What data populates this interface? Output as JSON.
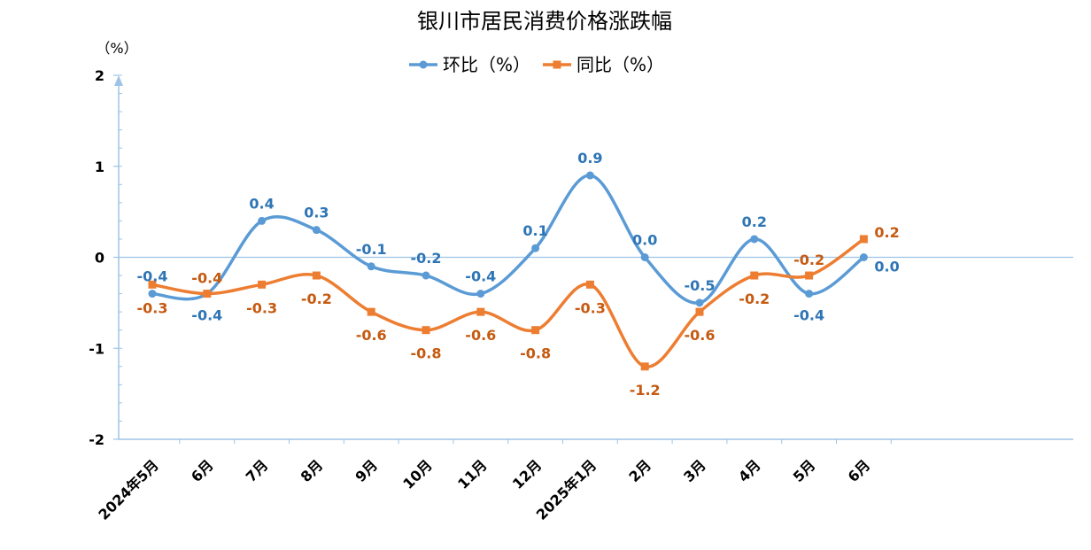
{
  "chart_data": {
    "type": "line",
    "title": "银川市居民消费价格涨跌幅",
    "ylabel": "（%）",
    "xlabel": "",
    "ylim": [
      -2,
      2
    ],
    "yticks": [
      2,
      1,
      0,
      -1,
      -2
    ],
    "categories": [
      "2024年5月",
      "6月",
      "7月",
      "8月",
      "9月",
      "10月",
      "11月",
      "12月",
      "2025年1月",
      "2月",
      "3月",
      "4月",
      "5月",
      "6月"
    ],
    "series": [
      {
        "name": "环比（%）",
        "color": "#5b9bd5",
        "label_color": "#2e75b6",
        "marker": "circle",
        "values": [
          -0.4,
          -0.4,
          0.4,
          0.3,
          -0.1,
          -0.2,
          -0.4,
          0.1,
          0.9,
          0.0,
          -0.5,
          0.2,
          -0.4,
          0.0
        ],
        "labels": [
          "-0.4",
          "-0.4",
          "0.4",
          "0.3",
          "-0.1",
          "-0.2",
          "-0.4",
          "0.1",
          "0.9",
          "0.0",
          "-0.5",
          "0.2",
          "-0.4",
          "0.0"
        ]
      },
      {
        "name": "同比（%）",
        "color": "#ed7d31",
        "label_color": "#c55a11",
        "marker": "square",
        "values": [
          -0.3,
          -0.4,
          -0.3,
          -0.2,
          -0.6,
          -0.8,
          -0.6,
          -0.8,
          -0.3,
          -1.2,
          -0.6,
          -0.2,
          -0.2,
          0.2
        ],
        "labels": [
          "-0.3",
          "-0.4",
          "-0.3",
          "-0.2",
          "-0.6",
          "-0.8",
          "-0.6",
          "-0.8",
          "-0.3",
          "-1.2",
          "-0.6",
          "-0.2",
          "-0.2",
          "0.2"
        ]
      }
    ],
    "legend_position": "top-center",
    "grid": false
  }
}
